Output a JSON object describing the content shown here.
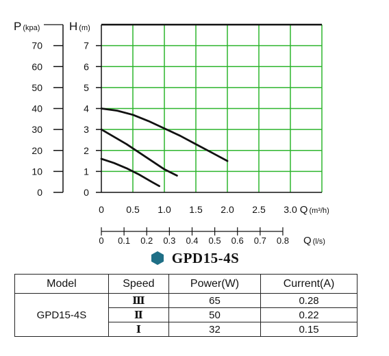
{
  "chart_data": {
    "type": "line",
    "title": "",
    "xlabel": "Q(m³/h)",
    "xlabel_secondary": "Q(l/s)",
    "ylabel_left": "P(kpa)",
    "ylabel_right": "H(m)",
    "xlim": [
      0,
      3.5
    ],
    "ylim": [
      0,
      8
    ],
    "grid": true,
    "x_ticks": [
      "0",
      "0.5",
      "1.0",
      "1.5",
      "2.0",
      "2.5",
      "3.0"
    ],
    "x_ticks_values": [
      0,
      0.5,
      1.0,
      1.5,
      2.0,
      2.5,
      3.0
    ],
    "x_secondary_ticks": [
      "0",
      "0.1",
      "0.2",
      "0.3",
      "0.4",
      "0.5",
      "0.6",
      "0.7",
      "0.8"
    ],
    "x_secondary_values": [
      0,
      0.1,
      0.2,
      0.3,
      0.4,
      0.5,
      0.6,
      0.7,
      0.8
    ],
    "h_ticks": [
      "0",
      "1",
      "2",
      "3",
      "4",
      "5",
      "6",
      "7"
    ],
    "h_values": [
      0,
      1,
      2,
      3,
      4,
      5,
      6,
      7
    ],
    "p_ticks": [
      "0",
      "10",
      "20",
      "30",
      "40",
      "50",
      "60",
      "70"
    ],
    "p_values": [
      0,
      10,
      20,
      30,
      40,
      50,
      60,
      70
    ],
    "series": [
      {
        "x": [
          0,
          0.25,
          0.5,
          0.75,
          1.0,
          1.25,
          1.5,
          1.75,
          2.0
        ],
        "y": [
          4.0,
          3.9,
          3.7,
          3.4,
          3.05,
          2.7,
          2.3,
          1.9,
          1.5
        ]
      },
      {
        "x": [
          0,
          0.2,
          0.4,
          0.6,
          0.8,
          1.0,
          1.2
        ],
        "y": [
          3.0,
          2.65,
          2.3,
          1.9,
          1.5,
          1.1,
          0.8
        ]
      },
      {
        "x": [
          0,
          0.2,
          0.4,
          0.6,
          0.8,
          0.92
        ],
        "y": [
          1.6,
          1.4,
          1.15,
          0.85,
          0.5,
          0.3
        ]
      }
    ],
    "colors": {
      "grid": "#2db52d",
      "curve": "#111111",
      "frame": "#111111"
    }
  },
  "model_title": "GPD15-4S",
  "table": {
    "headers": [
      "Model",
      "Speed",
      "Power(W)",
      "Current(A)"
    ],
    "model": "GPD15-4S",
    "rows": [
      {
        "speed": "Ⅲ",
        "power": "65",
        "current": "0.28"
      },
      {
        "speed": "Ⅱ",
        "power": "50",
        "current": "0.22"
      },
      {
        "speed": "Ⅰ",
        "power": "32",
        "current": "0.15"
      }
    ]
  },
  "colors": {
    "accent_hexagon": "#1f6f86"
  }
}
